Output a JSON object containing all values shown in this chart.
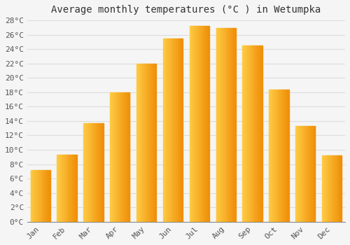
{
  "title": "Average monthly temperatures (°C ) in Wetumpka",
  "months": [
    "Jan",
    "Feb",
    "Mar",
    "Apr",
    "May",
    "Jun",
    "Jul",
    "Aug",
    "Sep",
    "Oct",
    "Nov",
    "Dec"
  ],
  "values": [
    7.2,
    9.3,
    13.7,
    18.0,
    22.0,
    25.5,
    27.2,
    26.9,
    24.5,
    18.4,
    13.3,
    9.2
  ],
  "bar_color_left": "#FFCC44",
  "bar_color_right": "#F5A623",
  "background_color": "#F5F5F5",
  "grid_color": "#DDDDDD",
  "ylim_max": 29,
  "ytick_step": 2,
  "title_fontsize": 10,
  "tick_fontsize": 8,
  "font_family": "monospace",
  "bar_width": 0.75
}
